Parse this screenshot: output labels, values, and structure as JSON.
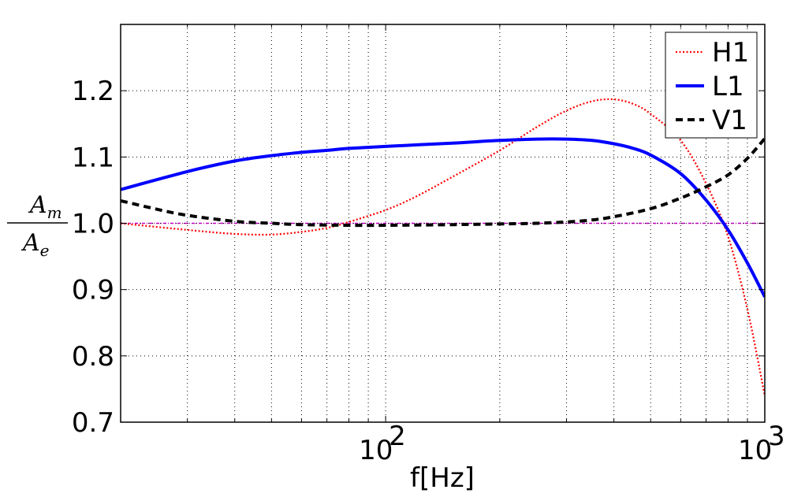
{
  "chart_data": {
    "type": "line",
    "xscale": "log",
    "xlim": [
      20,
      1000
    ],
    "ylim": [
      0.7,
      1.3
    ],
    "grid": true,
    "legend_position": "top-right",
    "xlabel": "f[Hz]",
    "ylabel": {
      "numerator": "A",
      "numerator_sub": "m",
      "denominator": "A",
      "denominator_sub": "e"
    },
    "x_ticks": [
      {
        "value": 100,
        "base": "10",
        "exp": "2"
      },
      {
        "value": 1000,
        "base": "10",
        "exp": "3"
      }
    ],
    "y_ticks": [
      {
        "value": 0.7,
        "label": "0.7"
      },
      {
        "value": 0.8,
        "label": "0.8"
      },
      {
        "value": 0.9,
        "label": "0.9"
      },
      {
        "value": 1.0,
        "label": "1.0"
      },
      {
        "value": 1.1,
        "label": "1.1"
      },
      {
        "value": 1.2,
        "label": "1.2"
      }
    ],
    "reference_line": {
      "y": 1.0,
      "color": "#bf00bf"
    },
    "series": [
      {
        "name": "H1",
        "color": "#ff0000",
        "style": "dotted",
        "points": [
          [
            20,
            1.0
          ],
          [
            30,
            0.99
          ],
          [
            40,
            0.984
          ],
          [
            50,
            0.983
          ],
          [
            60,
            0.987
          ],
          [
            70,
            0.993
          ],
          [
            80,
            1.002
          ],
          [
            100,
            1.02
          ],
          [
            120,
            1.04
          ],
          [
            150,
            1.07
          ],
          [
            200,
            1.11
          ],
          [
            250,
            1.145
          ],
          [
            300,
            1.17
          ],
          [
            350,
            1.184
          ],
          [
            400,
            1.187
          ],
          [
            450,
            1.18
          ],
          [
            500,
            1.165
          ],
          [
            600,
            1.125
          ],
          [
            700,
            1.06
          ],
          [
            800,
            0.98
          ],
          [
            900,
            0.87
          ],
          [
            1000,
            0.74
          ]
        ]
      },
      {
        "name": "L1",
        "color": "#0000ff",
        "style": "solid",
        "points": [
          [
            20,
            1.051
          ],
          [
            30,
            1.078
          ],
          [
            40,
            1.094
          ],
          [
            50,
            1.102
          ],
          [
            60,
            1.107
          ],
          [
            70,
            1.11
          ],
          [
            80,
            1.113
          ],
          [
            100,
            1.116
          ],
          [
            150,
            1.121
          ],
          [
            200,
            1.125
          ],
          [
            250,
            1.127
          ],
          [
            300,
            1.127
          ],
          [
            350,
            1.125
          ],
          [
            400,
            1.12
          ],
          [
            450,
            1.113
          ],
          [
            500,
            1.103
          ],
          [
            600,
            1.075
          ],
          [
            700,
            1.035
          ],
          [
            800,
            0.99
          ],
          [
            900,
            0.94
          ],
          [
            1000,
            0.889
          ]
        ]
      },
      {
        "name": "V1",
        "color": "#000000",
        "style": "dashed",
        "points": [
          [
            20,
            1.034
          ],
          [
            25,
            1.021
          ],
          [
            30,
            1.012
          ],
          [
            40,
            1.003
          ],
          [
            50,
            1.0
          ],
          [
            60,
            0.998
          ],
          [
            80,
            0.997
          ],
          [
            100,
            0.997
          ],
          [
            150,
            0.998
          ],
          [
            200,
            0.999
          ],
          [
            250,
            1.0
          ],
          [
            300,
            1.002
          ],
          [
            350,
            1.005
          ],
          [
            400,
            1.01
          ],
          [
            500,
            1.022
          ],
          [
            600,
            1.038
          ],
          [
            700,
            1.055
          ],
          [
            800,
            1.073
          ],
          [
            900,
            1.098
          ],
          [
            1000,
            1.128
          ]
        ]
      }
    ]
  }
}
